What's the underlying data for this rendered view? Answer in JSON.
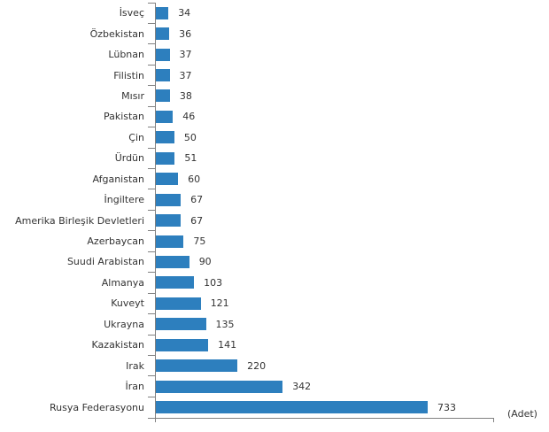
{
  "chart_data": {
    "type": "bar",
    "orientation": "horizontal",
    "title": "",
    "xlabel": "",
    "ylabel": "",
    "unit_label": "(Adet)",
    "categories": [
      "İsveç",
      "Özbekistan",
      "Lübnan",
      "Filistin",
      "Mısır",
      "Pakistan",
      "Çin",
      "Ürdün",
      "Afganistan",
      "İngiltere",
      "Amerika Birleşik Devletleri",
      "Azerbaycan",
      "Suudi Arabistan",
      "Almanya",
      "Kuveyt",
      "Ukrayna",
      "Kazakistan",
      "Irak",
      "İran",
      "Rusya Federasyonu"
    ],
    "values": [
      34,
      36,
      37,
      37,
      38,
      46,
      50,
      51,
      60,
      67,
      67,
      75,
      90,
      103,
      121,
      135,
      141,
      220,
      342,
      733
    ],
    "value_labels_shown": true,
    "grid": false,
    "legend": null,
    "bar_color": "#2D7FBE",
    "axis_color": "#808080",
    "text_color": "#333333"
  }
}
